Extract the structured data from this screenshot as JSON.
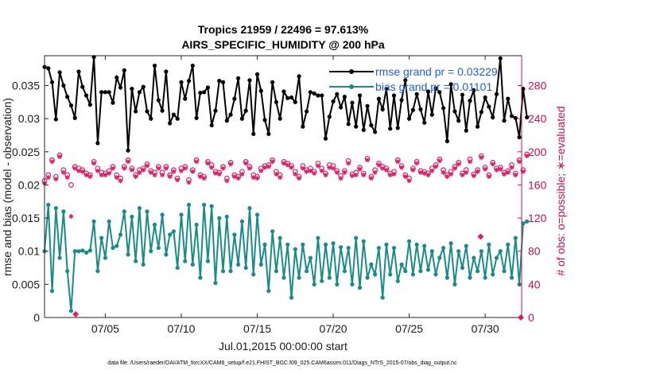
{
  "chart_data": {
    "type": "line",
    "title_line1": "Tropics 21959 / 22496 = 97.613%",
    "title_line2": "AIRS_SPECIFIC_HUMIDITY @ 200 hPa",
    "xlabel": "Jul.01,2015 00:00:00 start",
    "ylabel_left": "rmse and bias (model - observation)",
    "ylabel_right": "# of obs: o=possible; ∗=evaluated",
    "footer": "data file: /Users/raeder/DAI/ATM_forcXX/CAM6_setup/f.e21.FHIST_BGC.f09_025.CAM6assim.011/Diags_NTrS_2015-07/obs_diag_output.nc",
    "x_range": [
      1,
      32.4
    ],
    "ylim_left": [
      0,
      0.0395
    ],
    "ylim_right": [
      0,
      316
    ],
    "x_ticks": [
      {
        "v": 5,
        "label": "07/05"
      },
      {
        "v": 10,
        "label": "07/10"
      },
      {
        "v": 15,
        "label": "07/15"
      },
      {
        "v": 20,
        "label": "07/20"
      },
      {
        "v": 25,
        "label": "07/25"
      },
      {
        "v": 30,
        "label": "07/30"
      }
    ],
    "y_ticks_left": [
      {
        "v": 0,
        "label": "0"
      },
      {
        "v": 0.005,
        "label": "0.005"
      },
      {
        "v": 0.01,
        "label": "0.01"
      },
      {
        "v": 0.015,
        "label": "0.015"
      },
      {
        "v": 0.02,
        "label": "0.02"
      },
      {
        "v": 0.025,
        "label": "0.025"
      },
      {
        "v": 0.03,
        "label": "0.03"
      },
      {
        "v": 0.035,
        "label": "0.035"
      }
    ],
    "y_ticks_right": [
      {
        "v": 0,
        "label": "0"
      },
      {
        "v": 40,
        "label": "40"
      },
      {
        "v": 80,
        "label": "80"
      },
      {
        "v": 120,
        "label": "120"
      },
      {
        "v": 160,
        "label": "160"
      },
      {
        "v": 200,
        "label": "200"
      },
      {
        "v": 240,
        "label": "240"
      },
      {
        "v": 280,
        "label": "280"
      }
    ],
    "legend": [
      {
        "name": "rmse grand pr = 0.03229",
        "color": "#000000"
      },
      {
        "name": "bias grand pr = 0.01101",
        "color": "#1a8a8a"
      }
    ],
    "colors": {
      "rmse": "#000000",
      "bias": "#1a8a8a",
      "counts": "#d6246a",
      "axis_right": "#c8104f"
    },
    "t0": 1.0,
    "dt": 0.25,
    "rmse": [
      0.0378,
      0.0376,
      0.0355,
      0.0299,
      0.037,
      0.035,
      0.0333,
      0.032,
      0.0301,
      0.0371,
      0.0348,
      0.0335,
      0.0321,
      0.0393,
      0.0263,
      0.034,
      0.034,
      0.034,
      0.0324,
      0.0362,
      0.0347,
      0.0373,
      0.0252,
      0.0345,
      0.0311,
      0.034,
      0.0348,
      0.0311,
      0.03,
      0.038,
      0.0328,
      0.0312,
      0.0371,
      0.0293,
      0.0306,
      0.03,
      0.0355,
      0.033,
      0.0357,
      0.038,
      0.0301,
      0.0339,
      0.034,
      0.0347,
      0.029,
      0.0312,
      0.0357,
      0.0355,
      0.0297,
      0.0306,
      0.033,
      0.0361,
      0.03,
      0.0312,
      0.0358,
      0.0277,
      0.0367,
      0.0342,
      0.0298,
      0.0277,
      0.0355,
      0.0325,
      0.03,
      0.0341,
      0.0331,
      0.0332,
      0.0325,
      0.0364,
      0.0288,
      0.0311,
      0.034,
      0.0338,
      0.0335,
      0.0335,
      0.027,
      0.0303,
      0.0326,
      0.0337,
      0.0317,
      0.0333,
      0.0292,
      0.0324,
      0.0288,
      0.0335,
      0.0283,
      0.0319,
      0.029,
      0.028,
      0.033,
      0.0314,
      0.0345,
      0.0285,
      0.0335,
      0.0286,
      0.0328,
      0.0358,
      0.03,
      0.0313,
      0.0337,
      0.0314,
      0.0294,
      0.0341,
      0.0306,
      0.0346,
      0.034,
      0.0316,
      0.0266,
      0.0352,
      0.0311,
      0.0297,
      0.0336,
      0.0282,
      0.0327,
      0.0343,
      0.0288,
      0.031,
      0.0332,
      0.0318,
      0.0302,
      0.0337,
      0.0391,
      0.0297,
      0.033,
      0.0304,
      0.0301,
      0.0272,
      0.0345,
      0.0302
    ],
    "bias": [
      0.01,
      0.017,
      0.004,
      0.0165,
      0.009,
      0.016,
      0.007,
      0.001,
      0.01,
      0.01,
      0.0101,
      0.0098,
      0.0101,
      0.0145,
      0.007,
      0.012,
      0.009,
      0.0145,
      0.0105,
      0.0108,
      0.0125,
      0.016,
      0.0095,
      0.0152,
      0.0085,
      0.0165,
      0.008,
      0.016,
      0.01,
      0.014,
      0.0105,
      0.0155,
      0.0095,
      0.0125,
      0.013,
      0.0075,
      0.0155,
      0.0085,
      0.017,
      0.008,
      0.014,
      0.006,
      0.017,
      0.0085,
      0.0168,
      0.0052,
      0.015,
      0.007,
      0.0152,
      0.007,
      0.0125,
      0.008,
      0.0145,
      0.0075,
      0.0165,
      0.0065,
      0.0155,
      0.008,
      0.011,
      0.004,
      0.013,
      0.007,
      0.012,
      0.006,
      0.011,
      0.003,
      0.0103,
      0.006,
      0.011,
      0.007,
      0.009,
      0.005,
      0.012,
      0.0055,
      0.011,
      0.006,
      0.0112,
      0.005,
      0.0106,
      0.007,
      0.0105,
      0.005,
      0.012,
      0.0045,
      0.0115,
      0.006,
      0.008,
      0.0065,
      0.0105,
      0.003,
      0.011,
      0.0065,
      0.0105,
      0.0055,
      0.008,
      0.007,
      0.0115,
      0.0065,
      0.011,
      0.007,
      0.0108,
      0.0072,
      0.01,
      0.0065,
      0.009,
      0.0105,
      0.006,
      0.0112,
      0.005,
      0.01,
      0.0075,
      0.0108,
      0.006,
      0.009,
      0.007,
      0.01,
      0.006,
      0.011,
      0.0065,
      0.009,
      0.01,
      0.007,
      0.011,
      0.006,
      0.012,
      0.005,
      0.0142,
      0.0145
    ],
    "possible": [
      165,
      172,
      190,
      170,
      196,
      178,
      172,
      160,
      182,
      180,
      178,
      174,
      172,
      188,
      180,
      175,
      174,
      177,
      182,
      172,
      168,
      182,
      190,
      180,
      172,
      178,
      180,
      185,
      177,
      175,
      182,
      175,
      182,
      172,
      178,
      168,
      180,
      182,
      166,
      178,
      190,
      172,
      170,
      188,
      184,
      176,
      175,
      182,
      168,
      187,
      172,
      170,
      176,
      188,
      182,
      172,
      170,
      180,
      183,
      184,
      190,
      176,
      172,
      188,
      186,
      183,
      176,
      170,
      183,
      178,
      180,
      176,
      186,
      180,
      174,
      184,
      183,
      177,
      171,
      177,
      189,
      173,
      175,
      181,
      174,
      192,
      170,
      178,
      186,
      182,
      180,
      174,
      176,
      190,
      183,
      172,
      168,
      180,
      188,
      177,
      176,
      174,
      180,
      184,
      191,
      178,
      172,
      176,
      182,
      187,
      174,
      178,
      191,
      173,
      178,
      195,
      181,
      172,
      187,
      180,
      181,
      175,
      177,
      184,
      174,
      190,
      178,
      197
    ],
    "evaluated": [
      162,
      169,
      188,
      167,
      194,
      175,
      169,
      122,
      180,
      177,
      176,
      172,
      170,
      186,
      177,
      172,
      172,
      174,
      180,
      169,
      165,
      180,
      188,
      178,
      170,
      175,
      178,
      183,
      175,
      172,
      180,
      172,
      180,
      170,
      176,
      166,
      177,
      180,
      163,
      176,
      188,
      170,
      168,
      186,
      181,
      174,
      173,
      180,
      165,
      185,
      170,
      168,
      173,
      186,
      180,
      169,
      168,
      177,
      181,
      182,
      188,
      173,
      169,
      186,
      184,
      181,
      173,
      168,
      180,
      176,
      177,
      174,
      183,
      177,
      172,
      181,
      180,
      175,
      168,
      175,
      186,
      171,
      172,
      179,
      172,
      190,
      168,
      175,
      184,
      180,
      178,
      172,
      173,
      188,
      181,
      170,
      165,
      178,
      186,
      175,
      174,
      172,
      177,
      182,
      189,
      175,
      170,
      173,
      180,
      185,
      172,
      175,
      188,
      171,
      176,
      193,
      179,
      170,
      185,
      178,
      179,
      173,
      175,
      181,
      172,
      188,
      176,
      195
    ],
    "extra_markers": [
      {
        "t": 3.05,
        "v": 0.0005
      },
      {
        "t": 29.7,
        "v": 0.0122
      },
      {
        "t": 32.35,
        "v": 0.0
      }
    ]
  }
}
